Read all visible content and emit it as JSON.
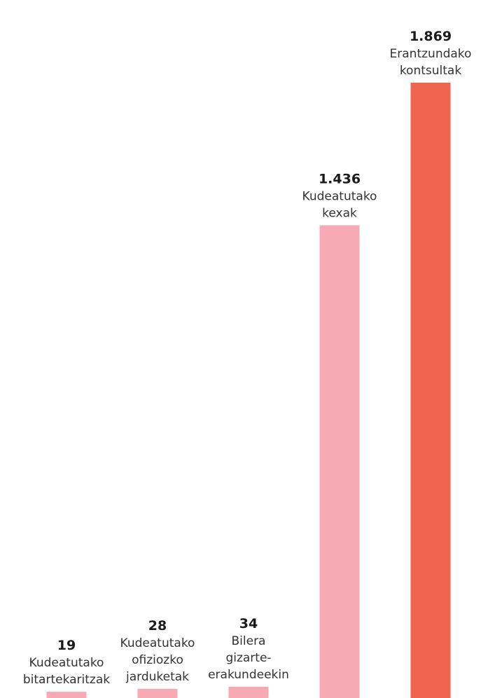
{
  "chart_data": {
    "type": "bar",
    "categories": [
      "Kudeatutako bitartekaritzak",
      "Kudeatutako ofiziozko jarduketak",
      "Bilera gizarte-erakundeekin",
      "Kudeatutako kexak",
      "Erantzundako kontsultak"
    ],
    "values": [
      19,
      28,
      34,
      1436,
      1869
    ],
    "value_labels": [
      "19",
      "28",
      "34",
      "1.436",
      "1.869"
    ],
    "label_lines": [
      [
        "Kudeatutako",
        "bitartekaritzak"
      ],
      [
        "Kudeatutako",
        "ofiziozko",
        "jarduketak"
      ],
      [
        "Bilera",
        "gizarte-",
        "erakundeekin"
      ],
      [
        "Kudeatutako",
        "kexak"
      ],
      [
        "Erantzundako",
        "kontsultak"
      ]
    ],
    "colors": [
      "#f7a9b4",
      "#f7a9b4",
      "#f7a9b4",
      "#f7a9b4",
      "#f0654f"
    ],
    "ylim": [
      0,
      1869
    ],
    "title": "",
    "xlabel": "",
    "ylabel": "",
    "grid": false,
    "legend": "none"
  }
}
